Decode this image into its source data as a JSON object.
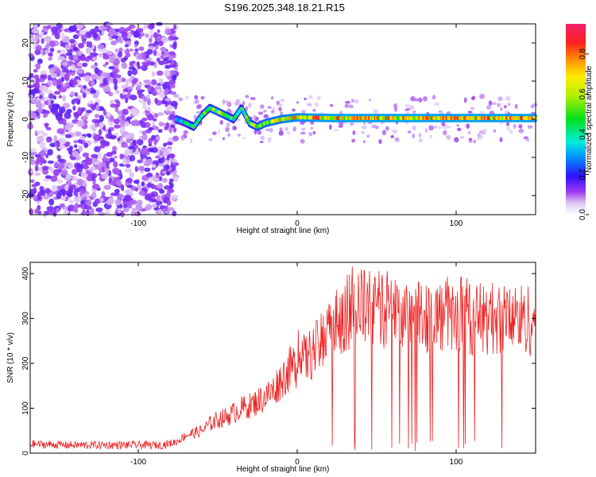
{
  "title": "S196.2025.348.18.21.R15",
  "chart_data": [
    {
      "type": "heatmap",
      "title": "S196.2025.348.18.21.R15",
      "xlabel": "Height of straight line (km)",
      "ylabel": "Frequency (Hz)",
      "xlim": [
        -168,
        150
      ],
      "ylim": [
        -25,
        25
      ],
      "xticks": [
        -100,
        0,
        100
      ],
      "yticks": [
        -20,
        -10,
        0,
        10,
        20
      ],
      "noise_region_x": [
        -168,
        -76
      ],
      "signal_band": {
        "description": "Narrow spectral line near 0 Hz from about -76 km to 150 km",
        "x": [
          -76,
          -70,
          -65,
          -60,
          -55,
          -50,
          -45,
          -40,
          -35,
          -30,
          -25,
          -20,
          -10,
          0,
          25,
          50,
          75,
          100,
          125,
          150
        ],
        "frequency": [
          0,
          -1,
          -2,
          1,
          3,
          2,
          1,
          0,
          3,
          -1,
          -2,
          -1,
          0,
          0.5,
          0.3,
          0.3,
          0.3,
          0.3,
          0.3,
          0.3
        ],
        "peak_amplitude": [
          0.5,
          0.5,
          0.6,
          0.6,
          0.65,
          0.7,
          0.7,
          0.6,
          0.6,
          0.65,
          0.7,
          0.75,
          0.8,
          0.85,
          0.9,
          0.9,
          0.9,
          0.9,
          0.9,
          0.9
        ]
      },
      "colorbar": {
        "label": "Normalized spectral amplitude",
        "range": [
          0,
          0.95
        ],
        "ticks": [
          "0.0",
          "0.2",
          "0.4",
          "0.6",
          "0.8"
        ]
      }
    },
    {
      "type": "line",
      "xlabel": "Height of straight line (km)",
      "ylabel": "SNR (10 * v/v)",
      "xlim": [
        -168,
        150
      ],
      "ylim": [
        0,
        425
      ],
      "xticks": [
        -100,
        0,
        100
      ],
      "yticks": [
        0,
        100,
        200,
        300,
        400
      ],
      "series": [
        {
          "name": "SNR",
          "color": "#ee2222",
          "x": [
            -168,
            -140,
            -110,
            -85,
            -76,
            -70,
            -65,
            -60,
            -55,
            -50,
            -45,
            -40,
            -35,
            -30,
            -25,
            -20,
            -15,
            -10,
            -5,
            0,
            5,
            10,
            15,
            20,
            25,
            30,
            40,
            50,
            60,
            75,
            90,
            100,
            110,
            125,
            140,
            150
          ],
          "values": [
            20,
            18,
            18,
            18,
            25,
            40,
            45,
            50,
            65,
            75,
            80,
            90,
            100,
            105,
            115,
            125,
            140,
            165,
            185,
            200,
            210,
            225,
            245,
            270,
            290,
            310,
            325,
            320,
            315,
            310,
            305,
            300,
            300,
            300,
            300,
            295
          ]
        }
      ]
    }
  ]
}
